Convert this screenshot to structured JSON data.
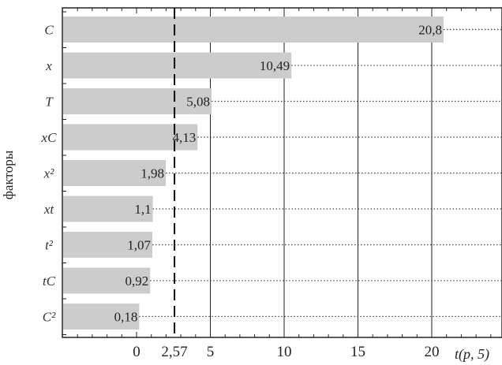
{
  "chart_data": {
    "type": "bar",
    "orientation": "horizontal",
    "ylabel": "факторы",
    "xlabel": "t(p, 5)",
    "categories": [
      "C",
      "x",
      "T",
      "xC",
      "x²",
      "xt",
      "t²",
      "tC",
      "C²"
    ],
    "values": [
      20.8,
      10.49,
      5.08,
      4.13,
      1.98,
      1.1,
      1.07,
      0.92,
      0.18
    ],
    "value_labels": [
      "20,8",
      "10,49",
      "5,08",
      "4,13",
      "1,98",
      "1,1",
      "1,07",
      "0,92",
      "0,18"
    ],
    "xlim": [
      -5,
      24
    ],
    "xticks": [
      {
        "value": 0,
        "label": "0"
      },
      {
        "value": 2.57,
        "label": "2,57"
      },
      {
        "value": 5,
        "label": "5"
      },
      {
        "value": 10,
        "label": "10"
      },
      {
        "value": 15,
        "label": "15"
      },
      {
        "value": 20,
        "label": "20"
      }
    ],
    "threshold": {
      "value": 2.57,
      "style": "dashed"
    },
    "grid": "vertical solid lines at 5, 10, 15, 20; dotted leader lines from bar ends",
    "bar_color": "#cccccc",
    "legend": "none"
  }
}
